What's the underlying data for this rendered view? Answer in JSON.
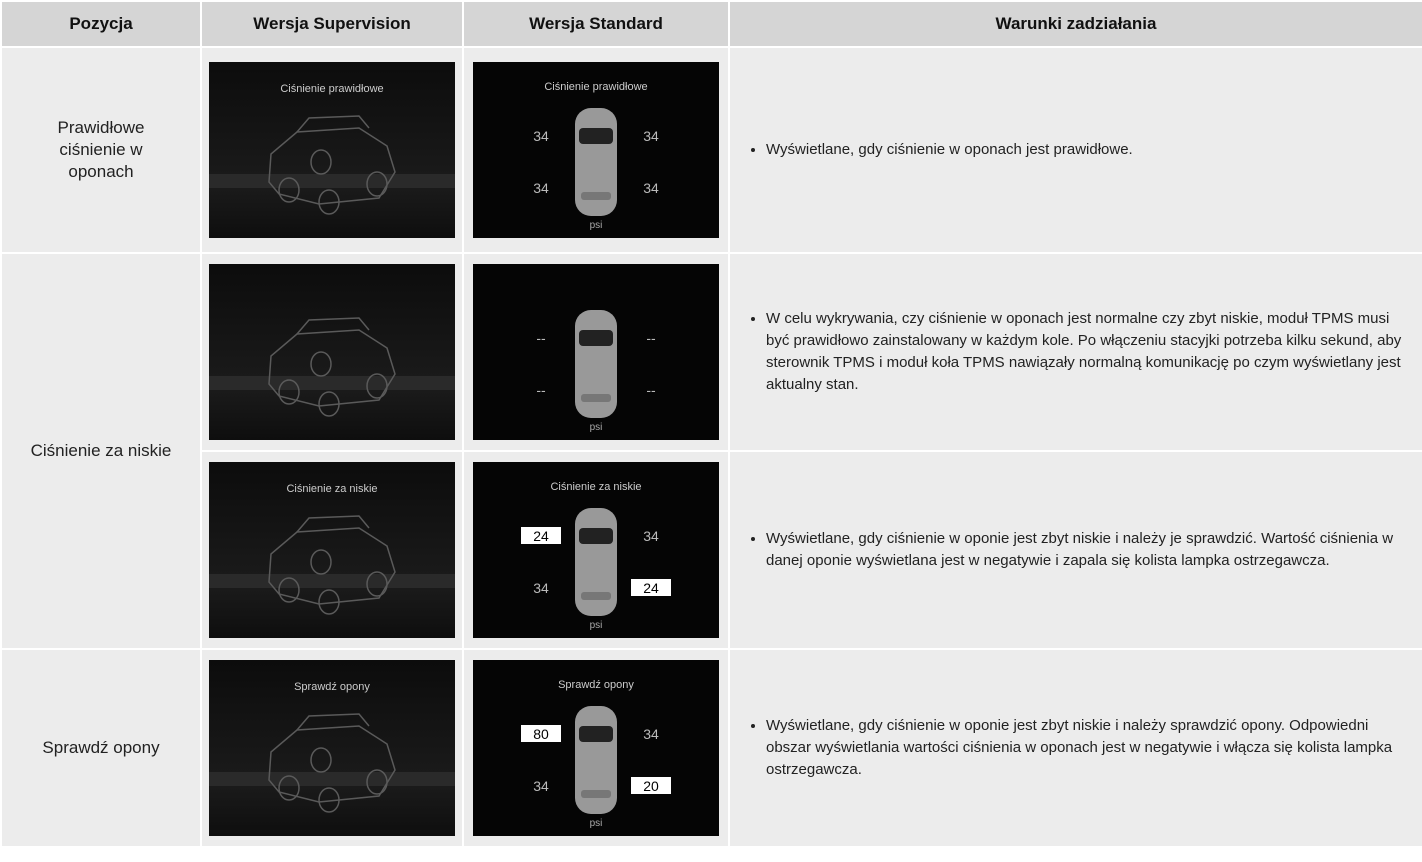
{
  "table": {
    "headers": [
      "Pozycja",
      "Wersja Supervision",
      "Wersja Standard",
      "Warunki zadziałania"
    ],
    "rows": [
      {
        "position": "Prawidłowe ciśnienie w oponach",
        "entries": [
          {
            "supervision": {
              "title": "Ciśnienie prawidłowe"
            },
            "standard": {
              "title": "Ciśnienie prawidłowe",
              "unit": "psi",
              "tires": [
                {
                  "value": 34
                },
                {
                  "value": 34
                },
                {
                  "value": 34
                },
                {
                  "value": 34
                }
              ]
            },
            "conditions": "Wyświetlane, gdy ciśnienie w oponach jest prawidłowe."
          }
        ]
      },
      {
        "position": "Ciśnienie za niskie",
        "entries": [
          {
            "supervision": {},
            "standard": {
              "unit": "psi",
              "tires": [
                {
                  "value": "--"
                },
                {
                  "value": "--"
                },
                {
                  "value": "--"
                },
                {
                  "value": "--"
                }
              ]
            },
            "conditions": "W celu wykrywania, czy ciśnienie w oponach jest normalne czy zbyt niskie, moduł TPMS musi być prawidłowo zainstalowany w każdym kole. Po włączeniu stacyjki potrzeba kilku sekund, aby sterownik TPMS i moduł koła TPMS nawiązały normalną komunikację po czym wyświetlany jest aktualny stan."
          },
          {
            "supervision": {
              "title": "Ciśnienie za niskie"
            },
            "standard": {
              "title": "Ciśnienie za niskie",
              "unit": "psi",
              "tires": [
                {
                  "value": 24,
                  "negative": true
                },
                {
                  "value": 34
                },
                {
                  "value": 34
                },
                {
                  "value": 24,
                  "negative": true
                }
              ]
            },
            "conditions": "Wyświetlane, gdy ciśnienie w oponie jest zbyt niskie i należy je sprawdzić. Wartość ciśnienia w danej oponie wyświetlana jest w negatywie i zapala się kolista lampka ostrzegawcza."
          }
        ]
      },
      {
        "position": "Sprawdź opony",
        "entries": [
          {
            "supervision": {
              "title": "Sprawdź opony"
            },
            "standard": {
              "title": "Sprawdź opony",
              "unit": "psi",
              "tires": [
                {
                  "value": 80,
                  "negative": true
                },
                {
                  "value": 34
                },
                {
                  "value": 34
                },
                {
                  "value": 20,
                  "negative": true
                }
              ]
            },
            "conditions": "Wyświetlane, gdy ciśnienie w oponie jest zbyt niskie i należy sprawdzić opony. Odpowiedni obszar wyświetlania wartości ciśnienia w oponach jest w negatywie i włącza się kolista lampka ostrzegawcza."
          }
        ]
      }
    ]
  }
}
